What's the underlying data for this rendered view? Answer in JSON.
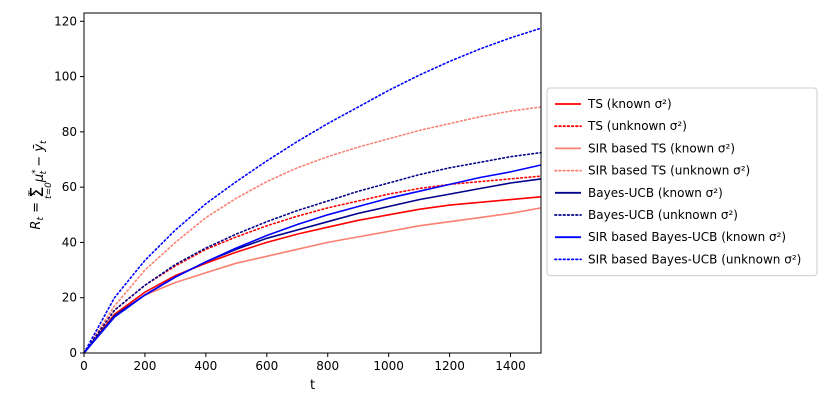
{
  "chart_data": {
    "type": "line",
    "xlabel": "t",
    "ylabel": "R_t = Σ_{t=0}^{T} μ*_t − ȳ_t",
    "xlim": [
      0,
      1500
    ],
    "ylim": [
      0,
      123
    ],
    "x_ticks": [
      "0",
      "200",
      "400",
      "600",
      "800",
      "1000",
      "1200",
      "1400"
    ],
    "y_ticks": [
      "0",
      "20",
      "40",
      "60",
      "80",
      "100",
      "120"
    ],
    "grid": false,
    "legend_placement": "right",
    "x": [
      0,
      100,
      200,
      300,
      400,
      500,
      600,
      700,
      800,
      900,
      1000,
      1100,
      1200,
      1300,
      1400,
      1500
    ],
    "series": [
      {
        "name": "TS (known σ²)",
        "color": "#ff0000",
        "style": "solid",
        "values": [
          0,
          14,
          22,
          28,
          32.5,
          36.5,
          40,
          43,
          45.5,
          48,
          50,
          52,
          53.5,
          54.5,
          55.5,
          56.5
        ]
      },
      {
        "name": "TS (unknown σ²)",
        "color": "#ff0000",
        "style": "dotted",
        "values": [
          0,
          15.5,
          24.5,
          31.5,
          37.5,
          42,
          46,
          49.5,
          52.5,
          55,
          57.5,
          59.5,
          61,
          62,
          63,
          64
        ]
      },
      {
        "name": "SIR based TS (known σ²)",
        "color": "#fa8072",
        "style": "solid",
        "values": [
          0,
          13.5,
          21,
          25.5,
          29,
          32.5,
          35,
          37.5,
          40,
          42,
          44,
          46,
          47.5,
          49,
          50.5,
          52.5
        ]
      },
      {
        "name": "SIR based TS (unknown σ²)",
        "color": "#fa8072",
        "style": "dotted",
        "values": [
          0,
          17,
          30,
          40,
          49,
          56,
          62,
          67,
          71,
          74.5,
          77.5,
          80.5,
          83,
          85.5,
          87.5,
          89
        ]
      },
      {
        "name": "Bayes-UCB (known σ²)",
        "color": "#00008b",
        "style": "solid",
        "values": [
          0,
          13.5,
          21,
          27.5,
          33,
          37.5,
          41.5,
          44.5,
          47.5,
          50.5,
          53,
          55.5,
          57.5,
          59.5,
          61.5,
          63
        ]
      },
      {
        "name": "Bayes-UCB (unknown σ²)",
        "color": "#00008b",
        "style": "dotted",
        "values": [
          0,
          15.5,
          24.5,
          32,
          38,
          43,
          47.5,
          51.5,
          55,
          58.5,
          61.5,
          64.5,
          67,
          69,
          71,
          72.5
        ]
      },
      {
        "name": "SIR based Bayes-UCB (known σ²)",
        "color": "#0000ff",
        "style": "solid",
        "values": [
          0,
          13,
          21,
          27.5,
          33,
          38,
          42.5,
          46.5,
          50,
          53,
          56,
          58.5,
          61,
          63.5,
          65.5,
          68
        ]
      },
      {
        "name": "SIR based Bayes-UCB (unknown σ²)",
        "color": "#0000ff",
        "style": "dotted",
        "values": [
          0,
          20,
          33.5,
          44.5,
          54,
          62,
          69.5,
          76.5,
          83,
          89,
          95,
          100.5,
          105.5,
          110,
          114,
          117.5
        ]
      }
    ]
  }
}
